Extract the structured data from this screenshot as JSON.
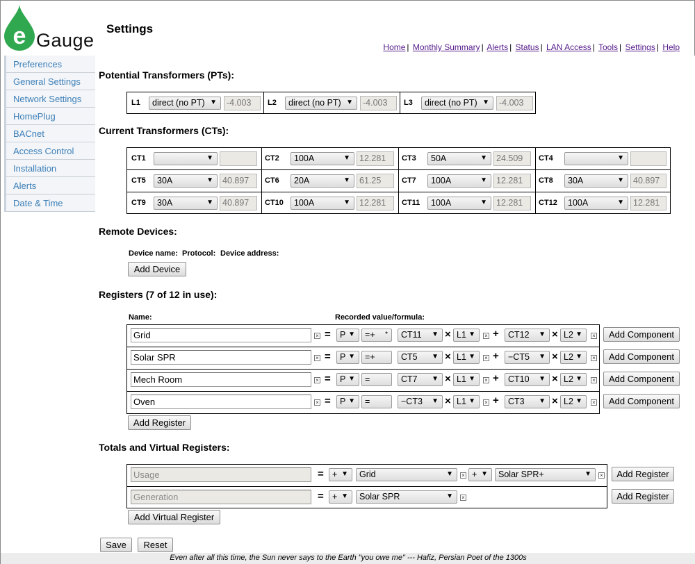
{
  "app": {
    "logo_letter": "e",
    "logo_word": "Gauge",
    "page_title": "Settings",
    "brand_color": "#2fa84f"
  },
  "topnav": [
    "Home",
    "Monthly Summary",
    "Alerts",
    "Status",
    "LAN Access",
    "Tools",
    "Settings",
    "Help"
  ],
  "sidebar": [
    "Preferences",
    "General Settings",
    "Network Settings",
    "HomePlug",
    "BACnet",
    "Access Control",
    "Installation",
    "Alerts",
    "Date & Time"
  ],
  "pts": {
    "title": "Potential Transformers (PTs):",
    "items": [
      {
        "label": "L1",
        "type": "direct (no PT)",
        "value": "-4.003"
      },
      {
        "label": "L2",
        "type": "direct (no PT)",
        "value": "-4.003"
      },
      {
        "label": "L3",
        "type": "direct (no PT)",
        "value": "-4.003"
      }
    ]
  },
  "cts": {
    "title": "Current Transformers (CTs):",
    "items": [
      {
        "label": "CT1",
        "type": "",
        "value": ""
      },
      {
        "label": "CT2",
        "type": "100A",
        "value": "12.281"
      },
      {
        "label": "CT3",
        "type": "50A",
        "value": "24.509"
      },
      {
        "label": "CT4",
        "type": "",
        "value": ""
      },
      {
        "label": "CT5",
        "type": "30A",
        "value": "40.897"
      },
      {
        "label": "CT6",
        "type": "20A",
        "value": "61.25"
      },
      {
        "label": "CT7",
        "type": "100A",
        "value": "12.281"
      },
      {
        "label": "CT8",
        "type": "30A",
        "value": "40.897"
      },
      {
        "label": "CT9",
        "type": "30A",
        "value": "40.897"
      },
      {
        "label": "CT10",
        "type": "100A",
        "value": "12.281"
      },
      {
        "label": "CT11",
        "type": "100A",
        "value": "12.281"
      },
      {
        "label": "CT12",
        "type": "100A",
        "value": "12.281"
      }
    ]
  },
  "remote": {
    "title": "Remote Devices:",
    "col_name": "Device name:",
    "col_protocol": "Protocol:",
    "col_address": "Device address:",
    "add_label": "Add Device"
  },
  "registers": {
    "title": "Registers (7 of 12 in use):",
    "col_name": "Name:",
    "col_formula": "Recorded value/formula:",
    "equals": "=",
    "times": "×",
    "plus": "+",
    "remove": "×",
    "add_component_label": "Add Component",
    "add_register_label": "Add Register",
    "rows": [
      {
        "name": "Grid",
        "type": "P",
        "mode": "=+",
        "mode_mark": "*",
        "a": "CT11",
        "a_line": "L1",
        "b": "CT12",
        "b_line": "L2"
      },
      {
        "name": "Solar SPR",
        "type": "P",
        "mode": "=+",
        "mode_mark": "",
        "a": "CT5",
        "a_line": "L1",
        "b": "−CT5",
        "b_line": "L2"
      },
      {
        "name": "Mech Room",
        "type": "P",
        "mode": "=",
        "mode_mark": "",
        "a": "CT7",
        "a_line": "L1",
        "b": "CT10",
        "b_line": "L2"
      },
      {
        "name": "Oven",
        "type": "P",
        "mode": "=",
        "mode_mark": "",
        "a": "−CT3",
        "a_line": "L1",
        "b": "CT3",
        "b_line": "L2"
      }
    ]
  },
  "virtual": {
    "title": "Totals and Virtual Registers:",
    "add_register_label": "Add Register",
    "add_virtual_label": "Add Virtual Register",
    "rows": [
      {
        "name": "Usage",
        "op1": "+",
        "reg1": "Grid",
        "op2": "+",
        "reg2": "Solar SPR+"
      },
      {
        "name": "Generation",
        "op1": "+",
        "reg1": "Solar SPR"
      }
    ]
  },
  "actions": {
    "save": "Save",
    "reset": "Reset"
  },
  "footer": "Even after all this time, the Sun never says to the Earth \"you owe me\" --- Hafiz, Persian Poet of the 1300s"
}
